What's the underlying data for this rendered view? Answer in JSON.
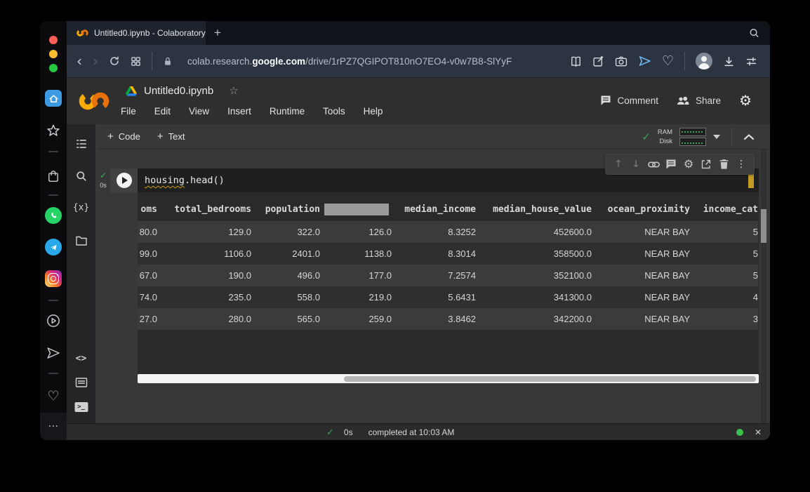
{
  "browser": {
    "tab_title": "Untitled0.ipynb - Colaboratory",
    "url_prefix": "colab.research.",
    "url_domain": "google.com",
    "url_path": "/drive/1rPZ7QGIPOT810nO7EO4-v0w7B8-SlYyF"
  },
  "glyphs": {
    "plus": "+",
    "star_outline": "☆",
    "heart_outline": "♡",
    "ellipsis_h": "⋯",
    "ellipsis_v": "⋮",
    "arrow_up": "↑",
    "arrow_down": "↓",
    "back": "‹",
    "forward": "›",
    "close": "✕",
    "check": "✓",
    "gear": "⚙"
  },
  "colab": {
    "notebook_title": "Untitled0.ipynb",
    "menus": [
      "File",
      "Edit",
      "View",
      "Insert",
      "Runtime",
      "Tools",
      "Help"
    ],
    "comment_label": "Comment",
    "share_label": "Share",
    "add_code_label": "Code",
    "add_text_label": "Text",
    "ram_label": "RAM",
    "disk_label": "Disk",
    "variables_icon": "{x}",
    "snippets_icon": "<>",
    "terminal_icon": ">_",
    "cell": {
      "code_obj": "housing",
      "code_rest": ".head()",
      "exec_time": "0s"
    },
    "status": {
      "exec_time": "0s",
      "message": "completed at 10:03 AM"
    }
  },
  "output_table": {
    "columns": [
      "oms",
      "total_bedrooms",
      "population",
      "",
      "median_income",
      "median_house_value",
      "ocean_proximity",
      "income_cat"
    ],
    "redacted_column_index": 3,
    "rows": [
      [
        "80.0",
        "129.0",
        "322.0",
        "126.0",
        "8.3252",
        "452600.0",
        "NEAR BAY",
        "5"
      ],
      [
        "99.0",
        "1106.0",
        "2401.0",
        "1138.0",
        "8.3014",
        "358500.0",
        "NEAR BAY",
        "5"
      ],
      [
        "67.0",
        "190.0",
        "496.0",
        "177.0",
        "7.2574",
        "352100.0",
        "NEAR BAY",
        "5"
      ],
      [
        "74.0",
        "235.0",
        "558.0",
        "219.0",
        "5.6431",
        "341300.0",
        "NEAR BAY",
        "4"
      ],
      [
        "27.0",
        "280.0",
        "565.0",
        "259.0",
        "3.8462",
        "342200.0",
        "NEAR BAY",
        "3"
      ]
    ]
  },
  "colors": {
    "accent_green": "#34a853",
    "colab_orange": "#e8710a",
    "marker_gold": "#c29b27"
  }
}
